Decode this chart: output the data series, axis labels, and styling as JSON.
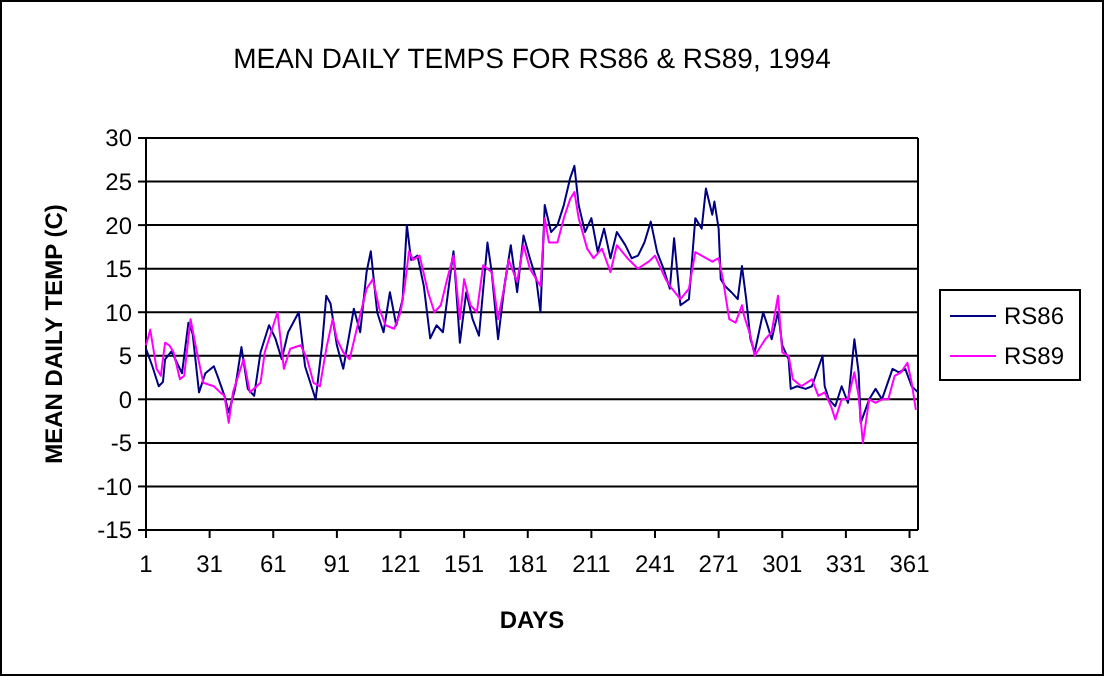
{
  "chart_data": {
    "type": "line",
    "title": "MEAN DAILY TEMPS FOR RS86 & RS89, 1994",
    "xlabel": "DAYS",
    "ylabel": "MEAN DAILY TEMP (C)",
    "xlim": [
      1,
      365
    ],
    "xticks": [
      1,
      31,
      61,
      91,
      121,
      151,
      181,
      211,
      241,
      271,
      301,
      331,
      361
    ],
    "ylim": [
      -15,
      30
    ],
    "yticks": [
      -15,
      -10,
      -5,
      0,
      5,
      10,
      15,
      20,
      25,
      30
    ],
    "grid": "y",
    "legend": "right",
    "line_style": "solid",
    "marker": "none",
    "series": [
      {
        "name": "RS86",
        "color": "#000080",
        "x": [
          1,
          4,
          7,
          9,
          10,
          13,
          18,
          21,
          23,
          26,
          29,
          33,
          35,
          38,
          40,
          43,
          46,
          49,
          52,
          55,
          59,
          62,
          65,
          68,
          73,
          76,
          79,
          81,
          84,
          86,
          88,
          91,
          94,
          99,
          102,
          105,
          107,
          110,
          113,
          116,
          119,
          122,
          124,
          126,
          129,
          132,
          135,
          138,
          141,
          145,
          146,
          149,
          152,
          155,
          158,
          162,
          164,
          167,
          170,
          173,
          176,
          179,
          182,
          185,
          187,
          189,
          192,
          195,
          198,
          201,
          203,
          205,
          208,
          211,
          214,
          217,
          220,
          223,
          227,
          230,
          233,
          236,
          239,
          242,
          245,
          248,
          250,
          253,
          257,
          260,
          263,
          265,
          268,
          269,
          271,
          272,
          274,
          277,
          280,
          282,
          284,
          286,
          288,
          290,
          292,
          294,
          296,
          299,
          301,
          304,
          305,
          308,
          312,
          315,
          320,
          321,
          323,
          326,
          329,
          332,
          335,
          337,
          338,
          342,
          345,
          348,
          353,
          356,
          359,
          362,
          365
        ],
        "values": [
          5.8,
          3.8,
          1.5,
          2,
          4.6,
          5.5,
          3,
          8.8,
          7.5,
          0.8,
          3,
          3.8,
          2.5,
          0.4,
          -1.5,
          1.2,
          6,
          1.2,
          0.4,
          5.4,
          8.5,
          7,
          4.6,
          7.7,
          10,
          3.8,
          1.5,
          0,
          6.2,
          11.9,
          11,
          6.2,
          3.5,
          10.4,
          7.7,
          14.6,
          17,
          10,
          7.7,
          12.3,
          8.5,
          11.5,
          20,
          16,
          16.5,
          13,
          7,
          8.5,
          7.7,
          15.3,
          17,
          6.5,
          12.3,
          9.2,
          7.3,
          18,
          14.6,
          6.9,
          13,
          17.7,
          12.3,
          18.8,
          16.2,
          13.8,
          10,
          22.3,
          19.2,
          20,
          22.3,
          25.4,
          26.8,
          22.3,
          19.2,
          20.8,
          16.9,
          19.6,
          16.2,
          19.2,
          17.7,
          16.2,
          16.5,
          18,
          20.4,
          16.9,
          15,
          12.7,
          18.5,
          10.8,
          11.5,
          20.8,
          19.6,
          24.2,
          21.2,
          22.7,
          19.6,
          13.8,
          13,
          12.3,
          11.5,
          15.3,
          11.5,
          6.9,
          5.4,
          7.7,
          10,
          8.5,
          6.9,
          10,
          6.2,
          4.6,
          1.2,
          1.5,
          1.2,
          1.5,
          5,
          1.5,
          0,
          -0.8,
          1.5,
          -0.4,
          6.9,
          3.1,
          -2.7,
          0,
          1.2,
          0,
          3.5,
          3.1,
          3.5,
          1.5,
          0.8
        ]
      },
      {
        "name": "RS89",
        "color": "#ff00ff",
        "x": [
          1,
          3,
          6,
          8,
          10,
          12,
          14,
          17,
          19,
          22,
          25,
          28,
          33,
          36,
          38,
          40,
          42,
          47,
          50,
          55,
          57,
          60,
          63,
          66,
          69,
          74,
          77,
          80,
          83,
          86,
          89,
          91,
          94,
          97,
          100,
          105,
          108,
          111,
          114,
          118,
          121,
          123,
          125,
          127,
          130,
          134,
          137,
          140,
          143,
          146,
          149,
          151,
          154,
          157,
          160,
          164,
          167,
          170,
          172,
          176,
          179,
          182,
          187,
          189,
          191,
          195,
          198,
          201,
          203,
          205,
          209,
          212,
          216,
          220,
          223,
          228,
          233,
          238,
          241,
          246,
          249,
          253,
          257,
          260,
          263,
          268,
          271,
          273,
          276,
          279,
          282,
          283,
          286,
          288,
          293,
          296,
          299,
          301,
          304,
          306,
          310,
          315,
          318,
          321,
          324,
          326,
          329,
          332,
          335,
          337,
          339,
          342,
          345,
          348,
          351,
          354,
          357,
          360,
          362,
          364
        ],
        "values": [
          6.2,
          8,
          3.5,
          2.7,
          6.5,
          6.2,
          5.4,
          2.3,
          2.7,
          9.2,
          5.4,
          1.9,
          1.5,
          0.8,
          0.4,
          -2.7,
          0.8,
          4.6,
          0.8,
          1.9,
          5.4,
          7.7,
          10,
          3.5,
          5.8,
          6.2,
          4.6,
          1.9,
          1.5,
          5.8,
          9.2,
          6.9,
          5.4,
          4.6,
          7.7,
          12.7,
          13.8,
          10.4,
          8.5,
          8.1,
          10,
          13,
          17,
          16,
          16.5,
          12.3,
          10,
          10.8,
          13.8,
          16.5,
          9.2,
          13.8,
          10.8,
          10,
          15.4,
          14.6,
          9.2,
          13,
          16,
          13.5,
          17.7,
          15,
          13,
          20.8,
          18,
          18,
          20.8,
          23,
          23.8,
          20.8,
          17.3,
          16.2,
          17.3,
          14.6,
          17.7,
          16.2,
          15,
          15.8,
          16.5,
          13.8,
          12.7,
          11.5,
          12.7,
          16.9,
          16.5,
          15.8,
          16.2,
          13.8,
          9.2,
          8.8,
          10.8,
          9.6,
          7.3,
          5,
          6.9,
          7.7,
          11.9,
          5.4,
          5,
          2.3,
          1.5,
          2.3,
          0.4,
          0.8,
          -0.8,
          -2.3,
          0,
          0,
          3.1,
          0.4,
          -5,
          0,
          -0.4,
          0,
          0,
          2.7,
          3.1,
          4.2,
          1.9,
          -1.2
        ]
      }
    ]
  }
}
